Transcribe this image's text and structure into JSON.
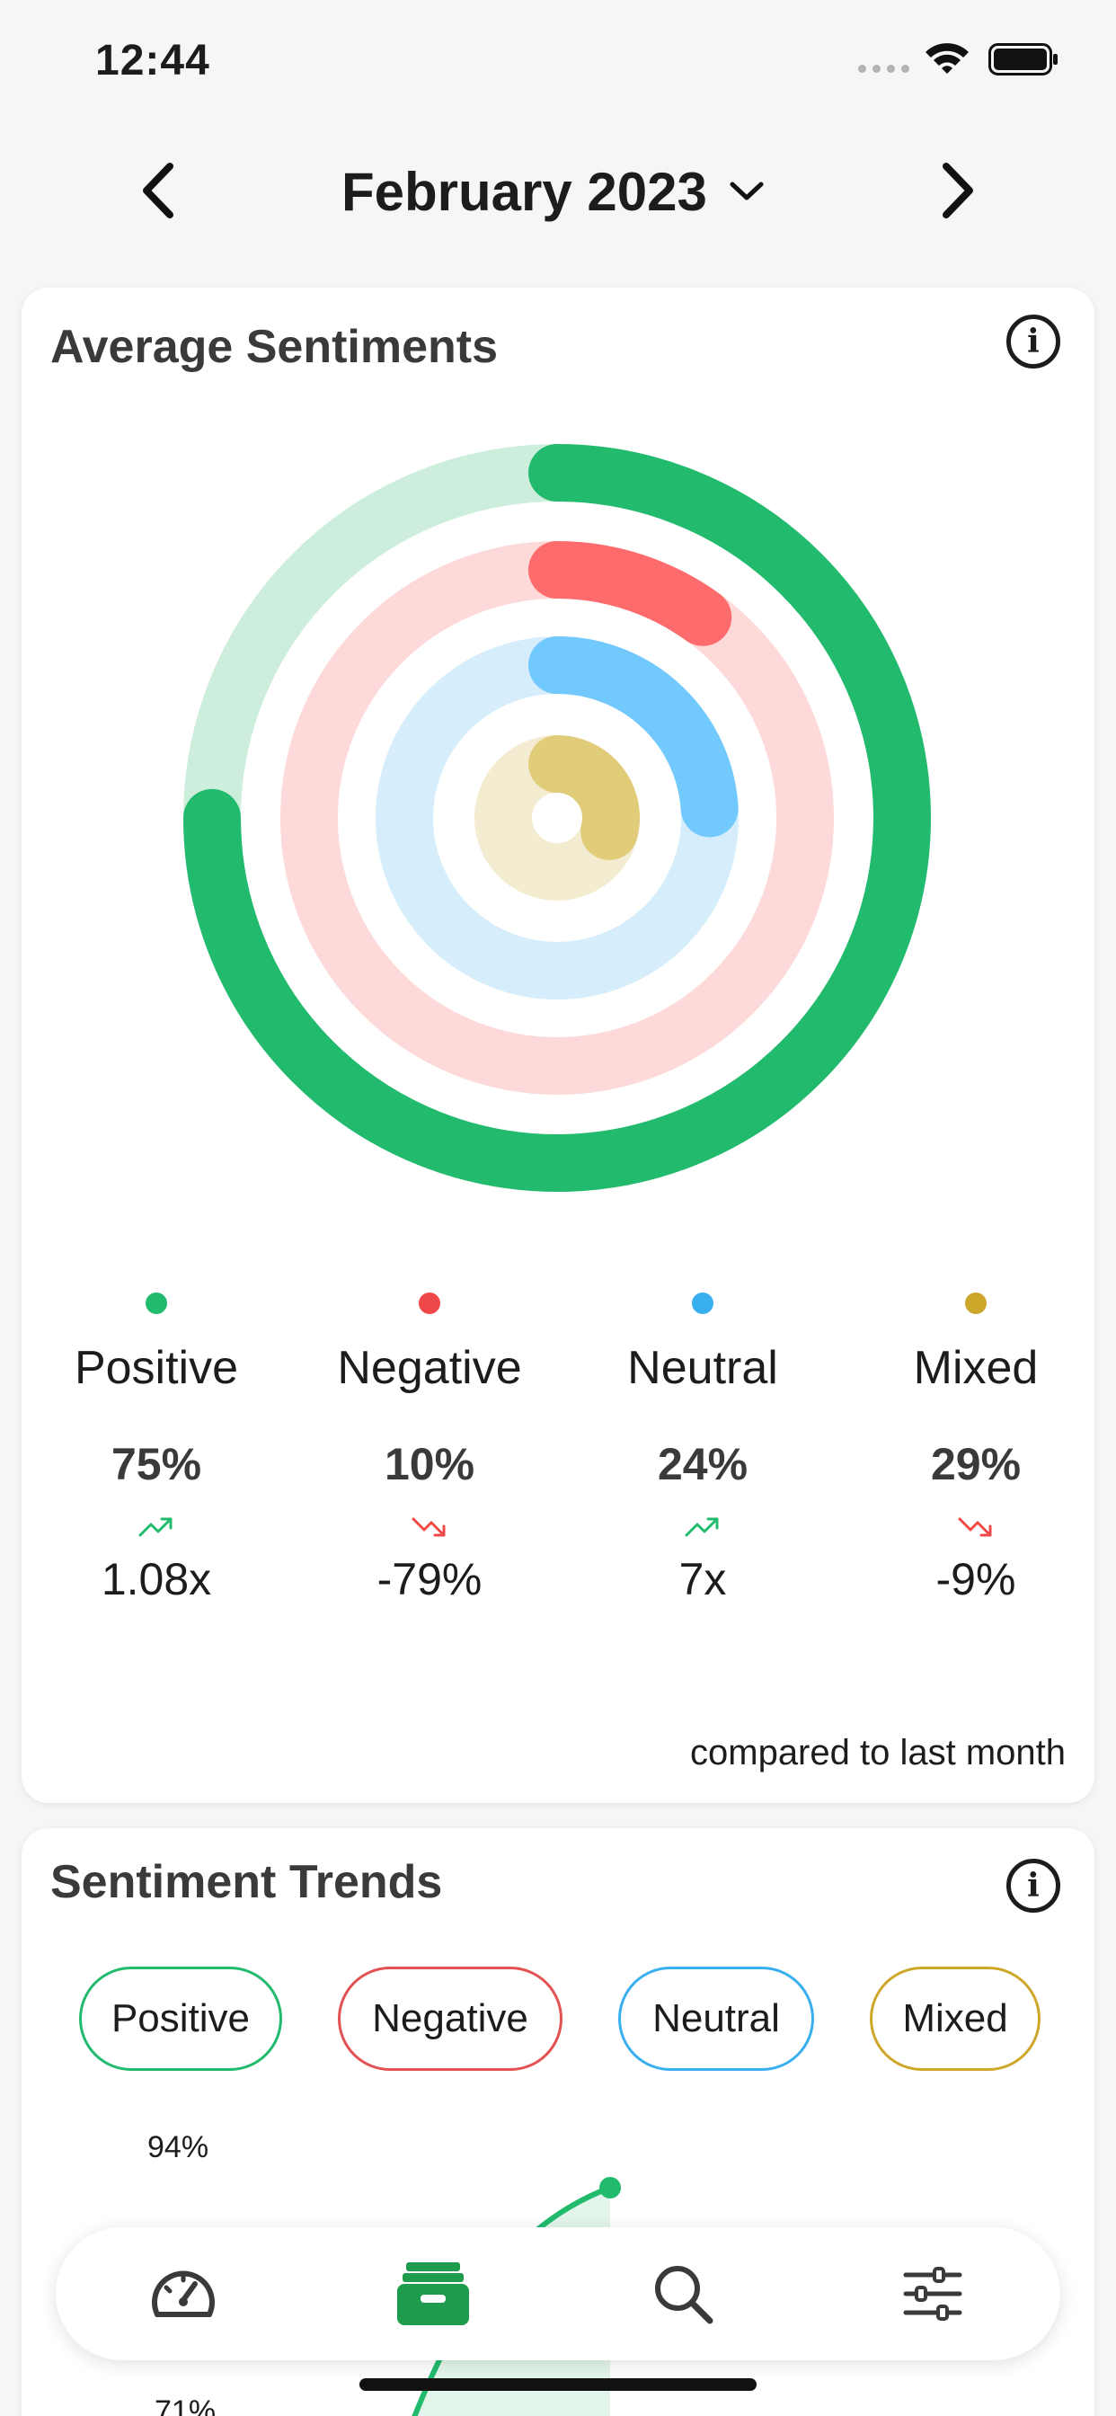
{
  "status_bar": {
    "time": "12:44"
  },
  "header": {
    "month_title": "February 2023"
  },
  "average_sentiments": {
    "title": "Average Sentiments",
    "rings": [
      {
        "name": "Positive",
        "value": 0.75,
        "color": "#22bb6e",
        "track_color": "#cdeedc"
      },
      {
        "name": "Negative",
        "value": 0.1,
        "color": "#fe6b6c",
        "track_color": "#fed9da"
      },
      {
        "name": "Neutral",
        "value": 0.24,
        "color": "#71c9fd",
        "track_color": "#d6eefb"
      },
      {
        "name": "Mixed",
        "value": 0.29,
        "color": "#e1cc7a",
        "track_color": "#f4ecd0"
      }
    ],
    "legend": [
      {
        "name": "Positive",
        "percent": "75%",
        "change": "1.08x",
        "trend": "up",
        "dot_color": "#22bb6e"
      },
      {
        "name": "Negative",
        "percent": "10%",
        "change": "-79%",
        "trend": "down",
        "dot_color": "#f04848"
      },
      {
        "name": "Neutral",
        "percent": "24%",
        "change": "7x",
        "trend": "up",
        "dot_color": "#3aaff0"
      },
      {
        "name": "Mixed",
        "percent": "29%",
        "change": "-9%",
        "trend": "down",
        "dot_color": "#cda72a"
      }
    ],
    "compared_note": "compared to last month"
  },
  "sentiment_trends": {
    "title": "Sentiment Trends",
    "filters": [
      {
        "label": "Positive",
        "color": "#22bb6e"
      },
      {
        "label": "Negative",
        "color": "#e25252"
      },
      {
        "label": "Neutral",
        "color": "#3aaff0"
      },
      {
        "label": "Mixed",
        "color": "#cda72a"
      }
    ],
    "y_labels": [
      "94%",
      "71%"
    ]
  },
  "tab_bar": {
    "tabs": [
      {
        "icon": "dashboard-gauge-icon",
        "active": false
      },
      {
        "icon": "inbox-tray-icon",
        "active": true
      },
      {
        "icon": "search-icon",
        "active": false
      },
      {
        "icon": "sliders-settings-icon",
        "active": false
      }
    ],
    "active_color": "#1e9b4c"
  }
}
